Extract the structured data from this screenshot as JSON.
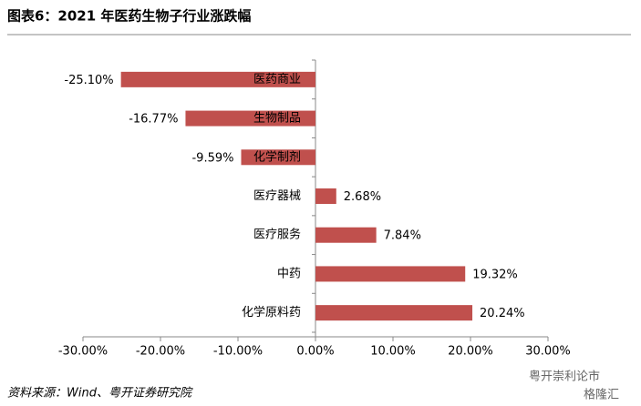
{
  "chart_data": {
    "type": "hbar",
    "title": "图表6：2021 年医药生物子行业涨跌幅",
    "categories": [
      "医药商业",
      "生物制品",
      "化学制剂",
      "医疗器械",
      "医疗服务",
      "中药",
      "化学原料药"
    ],
    "values": [
      -25.1,
      -16.77,
      -9.59,
      2.68,
      7.84,
      19.32,
      20.24
    ],
    "value_labels": [
      "-25.10%",
      "-16.77%",
      "-9.59%",
      "2.68%",
      "7.84%",
      "19.32%",
      "20.24%"
    ],
    "color": "#c0504d",
    "xlim": [
      -30,
      30
    ],
    "xticks": [
      {
        "value": -30,
        "label": "-30.00%"
      },
      {
        "value": -20,
        "label": "-20.00%"
      },
      {
        "value": -10,
        "label": "-10.00%"
      },
      {
        "value": 0,
        "label": "0.00%"
      },
      {
        "value": 10,
        "label": "10.00%"
      },
      {
        "value": 20,
        "label": "20.00%"
      },
      {
        "value": 30,
        "label": "30.00%"
      }
    ],
    "source": "资料来源：Wind、粤开证券研究院",
    "watermarks": [
      "粤开崇利论市",
      "格隆汇"
    ]
  }
}
